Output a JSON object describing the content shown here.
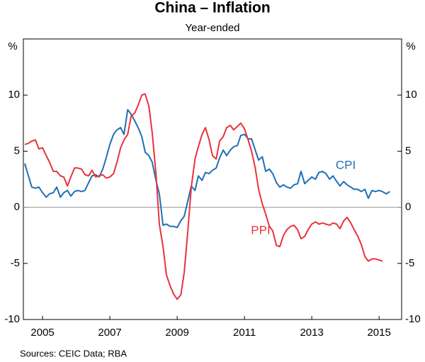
{
  "chart_data": {
    "type": "line",
    "title": "China – Inflation",
    "subtitle": "Year-ended",
    "y_unit": "%",
    "source": "Sources:  CEIC Data; RBA",
    "xlim": [
      2004.93,
      2016.17
    ],
    "xticks": [
      {
        "value": 2005.5,
        "label": "2005"
      },
      {
        "value": 2007.5,
        "label": "2007"
      },
      {
        "value": 2009.5,
        "label": "2009"
      },
      {
        "value": 2011.5,
        "label": "2011"
      },
      {
        "value": 2013.5,
        "label": "2013"
      },
      {
        "value": 2015.5,
        "label": "2015"
      }
    ],
    "ylim": [
      -10,
      15
    ],
    "yticks": [
      -10,
      -5,
      0,
      5,
      10
    ],
    "x": [
      2004.97,
      2005.08,
      2005.18,
      2005.29,
      2005.39,
      2005.5,
      2005.61,
      2005.71,
      2005.82,
      2005.92,
      2006.03,
      2006.13,
      2006.24,
      2006.34,
      2006.45,
      2006.55,
      2006.66,
      2006.76,
      2006.87,
      2006.97,
      2007.08,
      2007.18,
      2007.29,
      2007.39,
      2007.5,
      2007.61,
      2007.71,
      2007.82,
      2007.92,
      2008.03,
      2008.13,
      2008.24,
      2008.34,
      2008.45,
      2008.55,
      2008.66,
      2008.76,
      2008.87,
      2008.97,
      2009.08,
      2009.18,
      2009.29,
      2009.39,
      2009.5,
      2009.61,
      2009.71,
      2009.82,
      2009.92,
      2010.03,
      2010.13,
      2010.24,
      2010.34,
      2010.45,
      2010.55,
      2010.66,
      2010.76,
      2010.87,
      2010.97,
      2011.08,
      2011.18,
      2011.29,
      2011.39,
      2011.5,
      2011.61,
      2011.71,
      2011.82,
      2011.92,
      2012.03,
      2012.13,
      2012.24,
      2012.34,
      2012.45,
      2012.55,
      2012.66,
      2012.76,
      2012.87,
      2012.97,
      2013.08,
      2013.18,
      2013.29,
      2013.39,
      2013.5,
      2013.61,
      2013.71,
      2013.82,
      2013.92,
      2014.03,
      2014.13,
      2014.24,
      2014.34,
      2014.45,
      2014.55,
      2014.66,
      2014.76,
      2014.87,
      2014.97,
      2015.08,
      2015.18,
      2015.29,
      2015.39,
      2015.5,
      2015.6,
      2015.71,
      2015.82
    ],
    "series": [
      {
        "name": "CPI",
        "color": "#1f6fb5",
        "values": [
          3.9,
          2.8,
          1.8,
          1.7,
          1.8,
          1.3,
          0.9,
          1.2,
          1.3,
          1.8,
          0.9,
          1.3,
          1.5,
          1.0,
          1.4,
          1.5,
          1.4,
          1.5,
          2.2,
          2.8,
          2.9,
          2.7,
          3.4,
          4.4,
          5.6,
          6.5,
          6.9,
          7.1,
          6.5,
          8.7,
          8.3,
          7.7,
          7.1,
          6.3,
          4.9,
          4.6,
          4.0,
          2.4,
          1.2,
          -1.6,
          -1.5,
          -1.7,
          -1.7,
          -1.8,
          -1.2,
          -0.8,
          0.6,
          1.9,
          1.5,
          2.8,
          2.4,
          3.1,
          3.0,
          3.3,
          3.5,
          4.4,
          5.1,
          4.6,
          5.1,
          5.4,
          5.5,
          6.4,
          6.5,
          6.1,
          6.1,
          5.1,
          4.2,
          4.5,
          3.2,
          3.4,
          3.0,
          2.2,
          1.8,
          2.0,
          1.8,
          1.7,
          2.0,
          2.1,
          3.2,
          2.1,
          2.4,
          2.7,
          2.5,
          3.1,
          3.2,
          3.0,
          2.5,
          2.8,
          2.3,
          1.9,
          2.3,
          2.0,
          1.8,
          1.6,
          1.6,
          1.4,
          1.6,
          0.8,
          1.5,
          1.4,
          1.5,
          1.4,
          1.2,
          1.4
        ]
      },
      {
        "name": "PPI",
        "color": "#e8333a",
        "values": [
          5.6,
          5.7,
          5.9,
          6.0,
          5.2,
          5.3,
          4.6,
          4.0,
          3.2,
          3.2,
          2.8,
          2.7,
          1.9,
          2.7,
          3.5,
          3.5,
          3.4,
          2.9,
          2.8,
          3.3,
          2.7,
          2.8,
          2.9,
          2.6,
          2.7,
          3.0,
          4.0,
          5.3,
          6.0,
          6.5,
          8.1,
          8.4,
          9.1,
          10.0,
          10.1,
          9.0,
          6.6,
          3.0,
          -1.5,
          -3.5,
          -6.0,
          -7.0,
          -7.7,
          -8.2,
          -7.8,
          -5.8,
          -2.0,
          1.8,
          4.3,
          5.4,
          6.5,
          7.1,
          6.0,
          4.6,
          4.3,
          5.9,
          6.3,
          7.1,
          7.3,
          6.9,
          7.2,
          7.5,
          7.0,
          6.0,
          5.0,
          3.5,
          1.6,
          0.3,
          -0.6,
          -1.7,
          -2.1,
          -3.4,
          -3.5,
          -2.5,
          -2.0,
          -1.7,
          -1.6,
          -2.0,
          -2.8,
          -2.6,
          -2.0,
          -1.5,
          -1.3,
          -1.5,
          -1.4,
          -1.5,
          -1.6,
          -1.4,
          -1.5,
          -1.9,
          -1.2,
          -0.9,
          -1.4,
          -2.0,
          -2.6,
          -3.3,
          -4.4,
          -4.8,
          -4.6,
          -4.6,
          -4.7,
          -4.8,
          null,
          null
        ]
      }
    ]
  }
}
